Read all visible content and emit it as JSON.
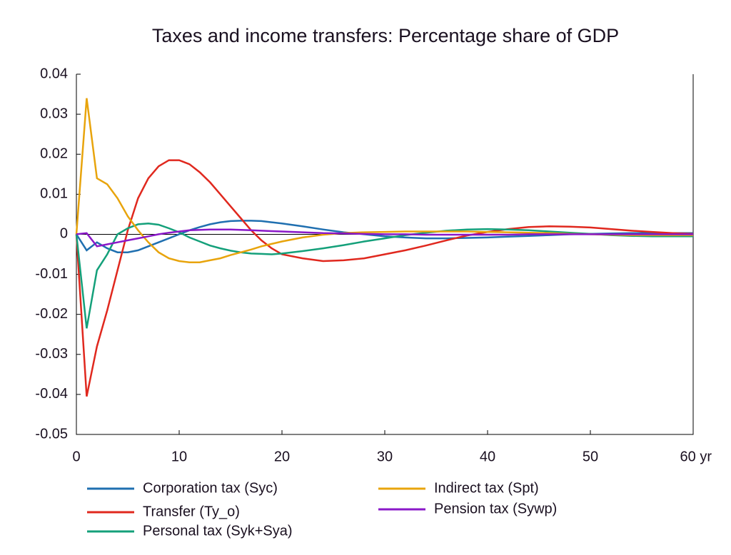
{
  "chart_data": {
    "type": "line",
    "title": "Taxes and income transfers: Percentage share of GDP",
    "x": [
      0,
      1,
      2,
      3,
      4,
      5,
      6,
      7,
      8,
      9,
      10,
      11,
      12,
      13,
      14,
      15,
      16,
      17,
      18,
      19,
      20,
      22,
      24,
      26,
      28,
      30,
      32,
      34,
      36,
      38,
      40,
      42,
      44,
      46,
      48,
      50,
      52,
      54,
      56,
      58,
      60
    ],
    "xlim": [
      0,
      60
    ],
    "xticks": [
      0,
      10,
      20,
      30,
      40,
      50,
      {
        "value": 60,
        "label": "60 yr"
      }
    ],
    "ylim": [
      -0.05,
      0.04
    ],
    "yticks": [
      0.04,
      0.03,
      0.02,
      0.01,
      0,
      -0.01,
      -0.02,
      -0.03,
      -0.04,
      -0.05
    ],
    "series": [
      {
        "name": "Corporation tax (Syc)",
        "color": "#1f6fb0",
        "values": [
          0,
          -0.004,
          -0.002,
          -0.0035,
          -0.0045,
          -0.0045,
          -0.004,
          -0.003,
          -0.002,
          -0.001,
          0,
          0.001,
          0.0018,
          0.0025,
          0.003,
          0.0033,
          0.0034,
          0.0034,
          0.0033,
          0.003,
          0.0027,
          0.002,
          0.0012,
          0.0005,
          0,
          -0.0005,
          -0.0008,
          -0.001,
          -0.001,
          -0.0009,
          -0.0008,
          -0.0006,
          -0.0004,
          -0.0002,
          0,
          0.0001,
          0.0002,
          0.0003,
          0.0003,
          0.0003,
          0.0003
        ]
      },
      {
        "name": "Transfer (Ty_o)",
        "color": "#e0281e",
        "values": [
          0,
          -0.0405,
          -0.028,
          -0.019,
          -0.009,
          0.001,
          0.009,
          0.014,
          0.017,
          0.0185,
          0.0185,
          0.0175,
          0.0155,
          0.013,
          0.01,
          0.007,
          0.004,
          0.001,
          -0.0015,
          -0.0035,
          -0.005,
          -0.006,
          -0.0067,
          -0.0065,
          -0.006,
          -0.005,
          -0.004,
          -0.0028,
          -0.0015,
          -0.0003,
          0.0006,
          0.0013,
          0.0018,
          0.002,
          0.0019,
          0.0017,
          0.0013,
          0.0009,
          0.0006,
          0.0003,
          0.0001
        ]
      },
      {
        "name": "Personal tax (Syk+Sya)",
        "color": "#14a07a",
        "values": [
          0,
          -0.0235,
          -0.009,
          -0.005,
          0,
          0.0015,
          0.0025,
          0.0027,
          0.0024,
          0.0015,
          0.0005,
          -0.0008,
          -0.0018,
          -0.0028,
          -0.0035,
          -0.0041,
          -0.0045,
          -0.0048,
          -0.0049,
          -0.005,
          -0.0048,
          -0.0042,
          -0.0035,
          -0.0027,
          -0.0018,
          -0.001,
          -0.0002,
          0.0004,
          0.0009,
          0.0012,
          0.0013,
          0.0012,
          0.001,
          0.0007,
          0.0004,
          0.0001,
          -0.0002,
          -0.0004,
          -0.0005,
          -0.0005,
          -0.0005
        ]
      },
      {
        "name": "Indirect tax (Spt)",
        "color": "#e8a40c",
        "values": [
          0,
          0.034,
          0.014,
          0.0125,
          0.009,
          0.0045,
          0.001,
          -0.002,
          -0.0045,
          -0.006,
          -0.0067,
          -0.007,
          -0.007,
          -0.0065,
          -0.006,
          -0.0052,
          -0.0045,
          -0.0038,
          -0.003,
          -0.0024,
          -0.0018,
          -0.0008,
          -0.0001,
          0.0003,
          0.0005,
          0.0006,
          0.0007,
          0.0007,
          0.0007,
          0.0007,
          0.0006,
          0.0005,
          0.0004,
          0.0003,
          0.0001,
          0,
          -0.0001,
          -0.0002,
          -0.0002,
          -0.0002,
          -0.0002
        ]
      },
      {
        "name": "Pension tax (Sywp)",
        "color": "#8a18c8",
        "values": [
          0,
          0.0003,
          -0.003,
          -0.0025,
          -0.002,
          -0.0015,
          -0.001,
          -0.0005,
          0,
          0.0004,
          0.0007,
          0.001,
          0.0011,
          0.0012,
          0.0012,
          0.0012,
          0.0011,
          0.001,
          0.0009,
          0.0008,
          0.0007,
          0.0005,
          0.0003,
          0.0002,
          0.0001,
          0,
          0,
          -0.0001,
          -0.0001,
          -0.0001,
          -0.0001,
          -0.0001,
          0,
          0,
          0,
          0,
          0,
          0,
          0,
          0,
          0
        ]
      }
    ]
  }
}
